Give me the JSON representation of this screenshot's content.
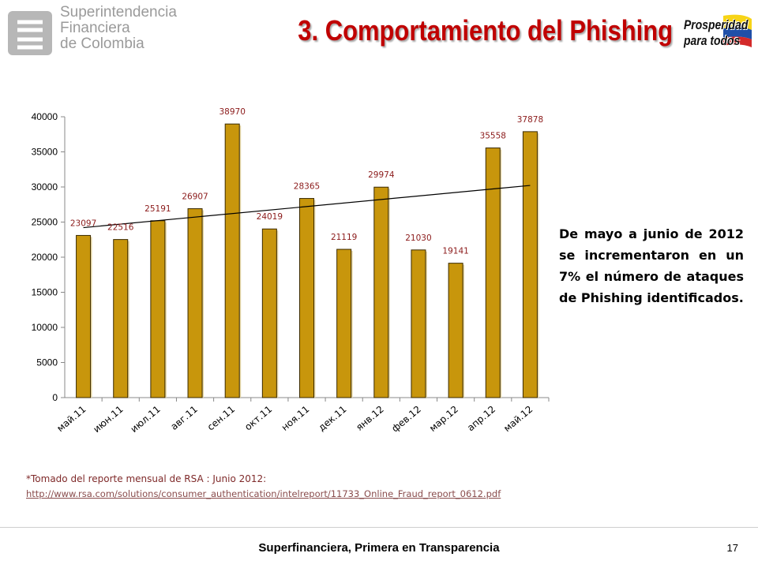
{
  "header": {
    "logo_lines": [
      "Superintendencia",
      "Financiera",
      "de Colombia"
    ],
    "title": "3. Comportamiento del Phishing",
    "badge_lines": [
      "Prosperidad",
      "para todos"
    ]
  },
  "chart_data": {
    "type": "bar",
    "categories": [
      "май.11",
      "июн.11",
      "июл.11",
      "авг.11",
      "сен.11",
      "окт.11",
      "ноя.11",
      "дек.11",
      "янв.12",
      "фев.12",
      "мар.12",
      "апр.12",
      "май.12"
    ],
    "values": [
      23097,
      22516,
      25191,
      26907,
      38970,
      24019,
      28365,
      21119,
      29974,
      21030,
      19141,
      35558,
      37878
    ],
    "ylim": [
      0,
      40000
    ],
    "yticks": [
      0,
      5000,
      10000,
      15000,
      20000,
      25000,
      30000,
      35000,
      40000
    ],
    "trendline": true,
    "title": "",
    "xlabel": "",
    "ylabel": "",
    "colors": {
      "bar": "#c8960c",
      "bar_edge": "#3a2a00",
      "label": "#8b1a1a"
    }
  },
  "side_text": "De mayo a junio de 2012 se incrementaron en un 7% el número de ataques de Phishing identificados.",
  "source": {
    "note": "*Tomado del reporte mensual de RSA : Junio 2012:",
    "url": "http://www.rsa.com/solutions/consumer_authentication/intelreport/11733_Online_Fraud_report_0612.pdf"
  },
  "footer": {
    "text": "Superfinanciera, Primera en Transparencia",
    "page": "17"
  }
}
